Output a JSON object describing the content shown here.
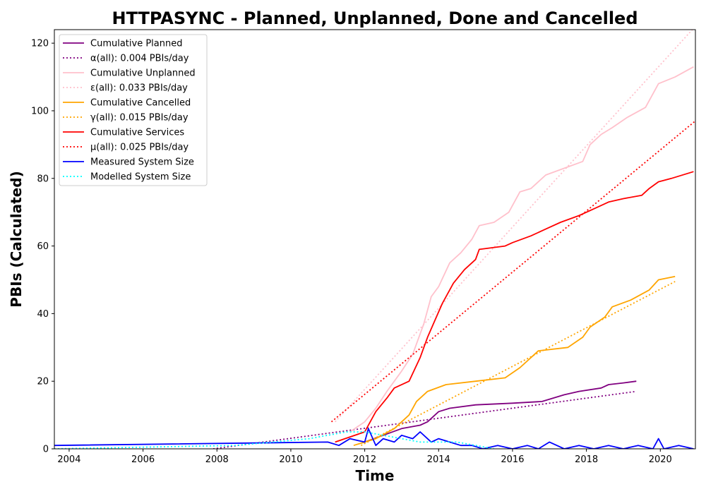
{
  "chart_data": {
    "type": "line",
    "title": "HTTPASYNC - Planned, Unplanned, Done  and Cancelled",
    "xlabel": "Time",
    "ylabel": "PBIs (Calculated)",
    "xlim": [
      2003.6,
      2020.95
    ],
    "ylim": [
      0,
      124
    ],
    "xticks": [
      2004,
      2006,
      2008,
      2010,
      2012,
      2014,
      2016,
      2018,
      2020
    ],
    "yticks": [
      0,
      20,
      40,
      60,
      80,
      100,
      120
    ],
    "legend_position": "top-left",
    "grid": false,
    "series": [
      {
        "name": "Cumulative Planned",
        "color": "#800080",
        "style": "solid",
        "x": [
          2012.0,
          2012.5,
          2013.0,
          2013.5,
          2013.7,
          2014.0,
          2014.3,
          2015.0,
          2016.0,
          2016.8,
          2017.4,
          2017.8,
          2018.4,
          2018.6,
          2019.0,
          2019.35
        ],
        "y": [
          2,
          4,
          6,
          7,
          8,
          11,
          12,
          13,
          13.5,
          14,
          16,
          17,
          18,
          19,
          19.5,
          20
        ]
      },
      {
        "name": "α(all): 0.004 PBIs/day",
        "color": "#800080",
        "style": "dotted",
        "x": [
          2007.9,
          2019.35
        ],
        "y": [
          0,
          17
        ]
      },
      {
        "name": "Cumulative Unplanned",
        "color": "#ffc0cb",
        "style": "solid",
        "x": [
          2011.6,
          2012.0,
          2012.3,
          2012.6,
          2013.0,
          2013.3,
          2013.6,
          2013.8,
          2014.0,
          2014.3,
          2014.6,
          2014.9,
          2015.1,
          2015.5,
          2015.9,
          2016.2,
          2016.5,
          2016.9,
          2017.4,
          2017.9,
          2018.1,
          2018.4,
          2018.7,
          2019.1,
          2019.6,
          2019.95,
          2020.4,
          2020.9
        ],
        "y": [
          5,
          8,
          12,
          17,
          23,
          28,
          37,
          45,
          48,
          55,
          58,
          62,
          66,
          67,
          70,
          76,
          77,
          81,
          83,
          85,
          90,
          93,
          95,
          98,
          101,
          108,
          110,
          113
        ]
      },
      {
        "name": "ε(all): 0.033 PBIs/day",
        "color": "#ffc0cb",
        "style": "dotted",
        "x": [
          2011.2,
          2020.95
        ],
        "y": [
          8,
          125
        ]
      },
      {
        "name": "Cumulative Cancelled",
        "color": "#ffa500",
        "style": "solid",
        "x": [
          2011.7,
          2012.3,
          2012.8,
          2013.2,
          2013.4,
          2013.7,
          2014.2,
          2015.0,
          2015.8,
          2016.2,
          2016.7,
          2017.5,
          2017.9,
          2018.1,
          2018.5,
          2018.7,
          2019.2,
          2019.7,
          2019.95,
          2020.4
        ],
        "y": [
          1,
          3,
          6,
          10,
          14,
          17,
          19,
          20,
          21,
          24,
          29,
          30,
          33,
          36,
          39,
          42,
          44,
          47,
          50,
          51
        ]
      },
      {
        "name": "γ(all): 0.015 PBIs/day",
        "color": "#ffa500",
        "style": "dotted",
        "x": [
          2011.9,
          2020.4
        ],
        "y": [
          1,
          49.5
        ]
      },
      {
        "name": "Cumulative Services",
        "color": "#ff0000",
        "style": "solid",
        "x": [
          2011.2,
          2012.0,
          2012.3,
          2012.6,
          2012.8,
          2013.2,
          2013.5,
          2013.7,
          2013.9,
          2014.1,
          2014.4,
          2014.7,
          2015.0,
          2015.1,
          2015.8,
          2016.0,
          2016.5,
          2016.9,
          2017.3,
          2017.8,
          2018.2,
          2018.6,
          2019.0,
          2019.5,
          2019.7,
          2019.95,
          2020.3,
          2020.9
        ],
        "y": [
          2,
          5,
          11,
          15,
          18,
          20,
          27,
          33,
          38,
          43,
          49,
          53,
          56,
          59,
          60,
          61,
          63,
          65,
          67,
          69,
          71,
          73,
          74,
          75,
          77,
          79,
          80,
          82
        ]
      },
      {
        "name": "μ(all): 0.025 PBIs/day",
        "color": "#ff0000",
        "style": "dotted",
        "x": [
          2011.1,
          2020.95
        ],
        "y": [
          8,
          97
        ]
      },
      {
        "name": "Measured System Size",
        "color": "#0000ff",
        "style": "solid",
        "x": [
          2003.6,
          2011.0,
          2011.3,
          2011.6,
          2012.0,
          2012.1,
          2012.3,
          2012.5,
          2012.8,
          2013.0,
          2013.3,
          2013.5,
          2013.8,
          2014.0,
          2014.3,
          2014.6,
          2014.9,
          2015.2,
          2015.6,
          2016.0,
          2016.4,
          2016.7,
          2017.0,
          2017.4,
          2017.8,
          2018.2,
          2018.6,
          2019.0,
          2019.4,
          2019.8,
          2019.95,
          2020.1,
          2020.5,
          2020.9
        ],
        "y": [
          1,
          2,
          1,
          3,
          2,
          6,
          1,
          3,
          2,
          4,
          3,
          5,
          2,
          3,
          2,
          1,
          1,
          0,
          1,
          0,
          1,
          0,
          2,
          0,
          1,
          0,
          1,
          0,
          1,
          0,
          3,
          0,
          1,
          0
        ]
      },
      {
        "name": "Modelled System Size",
        "color": "#00ffff",
        "style": "dotted",
        "x": [
          2003.6,
          2008.5,
          2009.5,
          2010.5,
          2011.0,
          2011.5,
          2012.0,
          2012.5,
          2013.0,
          2013.5,
          2014.0,
          2014.5,
          2015.0,
          2015.5
        ],
        "y": [
          0,
          1,
          2,
          3,
          4,
          5,
          5,
          4,
          3,
          2,
          2,
          2,
          1,
          0
        ]
      }
    ]
  }
}
